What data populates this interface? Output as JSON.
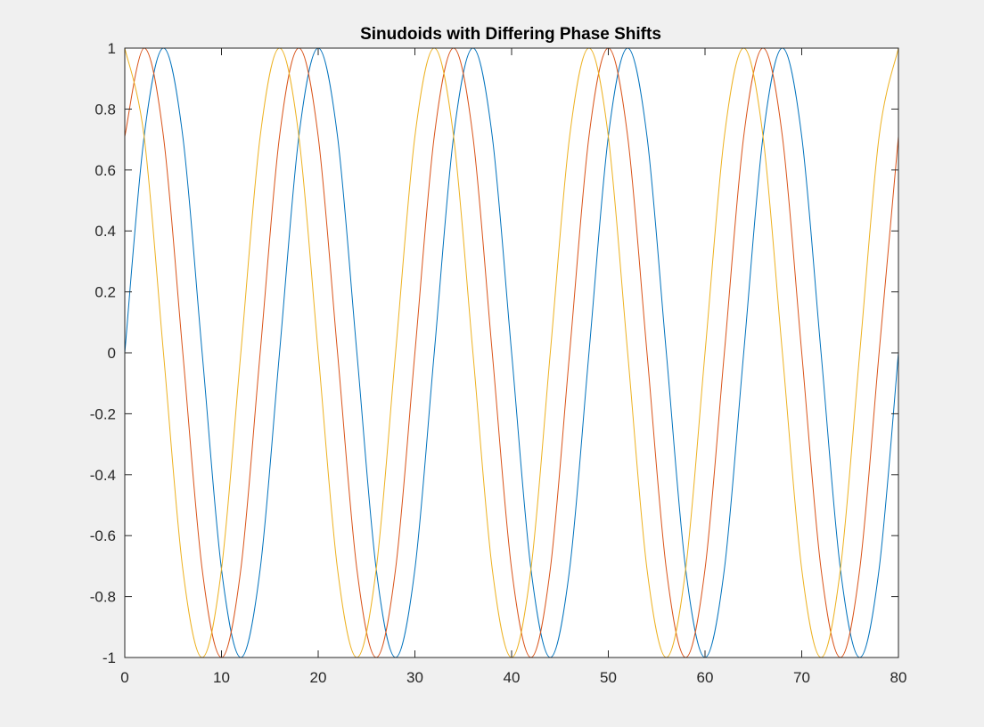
{
  "chart_data": {
    "type": "line",
    "title": "Sinudoids with Differing Phase Shifts",
    "xlabel": "",
    "ylabel": "",
    "xlim": [
      0,
      80
    ],
    "ylim": [
      -1,
      1
    ],
    "grid": false,
    "x_ticks": [
      0,
      10,
      20,
      30,
      40,
      50,
      60,
      70,
      80
    ],
    "x_tick_labels": [
      "0",
      "10",
      "20",
      "30",
      "40",
      "50",
      "60",
      "70",
      "80"
    ],
    "y_ticks": [
      -1,
      -0.8,
      -0.6,
      -0.4,
      -0.2,
      0,
      0.2,
      0.4,
      0.6,
      0.8,
      1
    ],
    "y_tick_labels": [
      "-1",
      "-0.8",
      "-0.6",
      "-0.4",
      "-0.2",
      "0",
      "0.2",
      "0.4",
      "0.6",
      "0.8",
      "1"
    ],
    "x": [
      0,
      2,
      4,
      6,
      8,
      10,
      12,
      14,
      16,
      18,
      20,
      22,
      24,
      26,
      28,
      30,
      32,
      34,
      36,
      38,
      40,
      42,
      44,
      46,
      48,
      50,
      52,
      54,
      56,
      58,
      60,
      62,
      64,
      66,
      68,
      70,
      72,
      74,
      76,
      78,
      80
    ],
    "series": [
      {
        "color": "#0072BD",
        "values": [
          0,
          0.71,
          1,
          0.71,
          0,
          -0.71,
          -1,
          -0.71,
          0,
          0.71,
          1,
          0.71,
          0,
          -0.71,
          -1,
          -0.71,
          0,
          0.71,
          1,
          0.71,
          0,
          -0.71,
          -1,
          -0.71,
          0,
          0.71,
          1,
          0.71,
          0,
          -0.71,
          -1,
          -0.71,
          0,
          0.71,
          1,
          0.71,
          0,
          -0.71,
          -1,
          -0.71,
          0
        ]
      },
      {
        "color": "#D95319",
        "values": [
          0.71,
          1,
          0.71,
          0,
          -0.71,
          -1,
          -0.71,
          0,
          0.71,
          1,
          0.71,
          0,
          -0.71,
          -1,
          -0.71,
          0,
          0.71,
          1,
          0.71,
          0,
          -0.71,
          -1,
          -0.71,
          0,
          0.71,
          1,
          0.71,
          0,
          -0.71,
          -1,
          -0.71,
          0,
          0.71,
          1,
          0.71,
          0,
          -0.71,
          -1,
          -0.71,
          0,
          0.71
        ]
      },
      {
        "color": "#EDB120",
        "values": [
          1,
          0.71,
          0,
          -0.71,
          -1,
          -0.71,
          0,
          0.71,
          1,
          0.71,
          0,
          -0.71,
          -1,
          -0.71,
          0,
          0.71,
          1,
          0.71,
          0,
          -0.71,
          -1,
          -0.71,
          0,
          0.71,
          1,
          0.71,
          0,
          -0.71,
          -1,
          -0.71,
          0,
          0.71,
          1,
          0.71,
          0,
          -0.71,
          -1,
          -0.71,
          0,
          0.71,
          1
        ]
      }
    ]
  }
}
